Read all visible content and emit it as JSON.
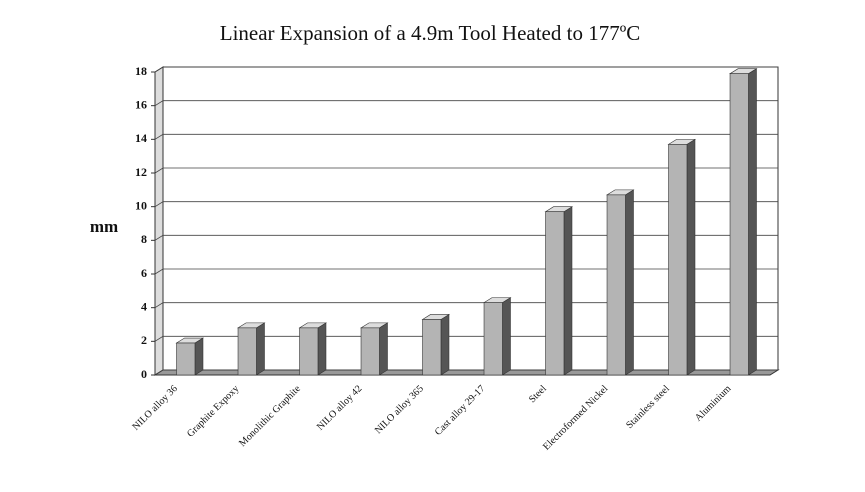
{
  "chart_data": {
    "type": "bar",
    "title": "Linear Expansion of a 4.9m Tool Heated to 177ºC",
    "y_label": "mm",
    "categories": [
      "NILO alloy 36",
      "Graphite Expoxy",
      "Monolithic Graphite",
      "NILO alloy 42",
      "NILO alloy 365",
      "Cast alloy 29-17",
      "Steel",
      "Electroformed Nickel",
      "Stainless steel",
      "Aluminium"
    ],
    "values": [
      1.9,
      2.8,
      2.8,
      2.8,
      3.3,
      4.3,
      9.7,
      10.7,
      13.7,
      17.9
    ],
    "color": "#b4b4b4",
    "ylim": [
      0,
      18
    ],
    "yticks": [
      0,
      2,
      4,
      6,
      8,
      10,
      12,
      14,
      16,
      18
    ],
    "grid": true
  }
}
